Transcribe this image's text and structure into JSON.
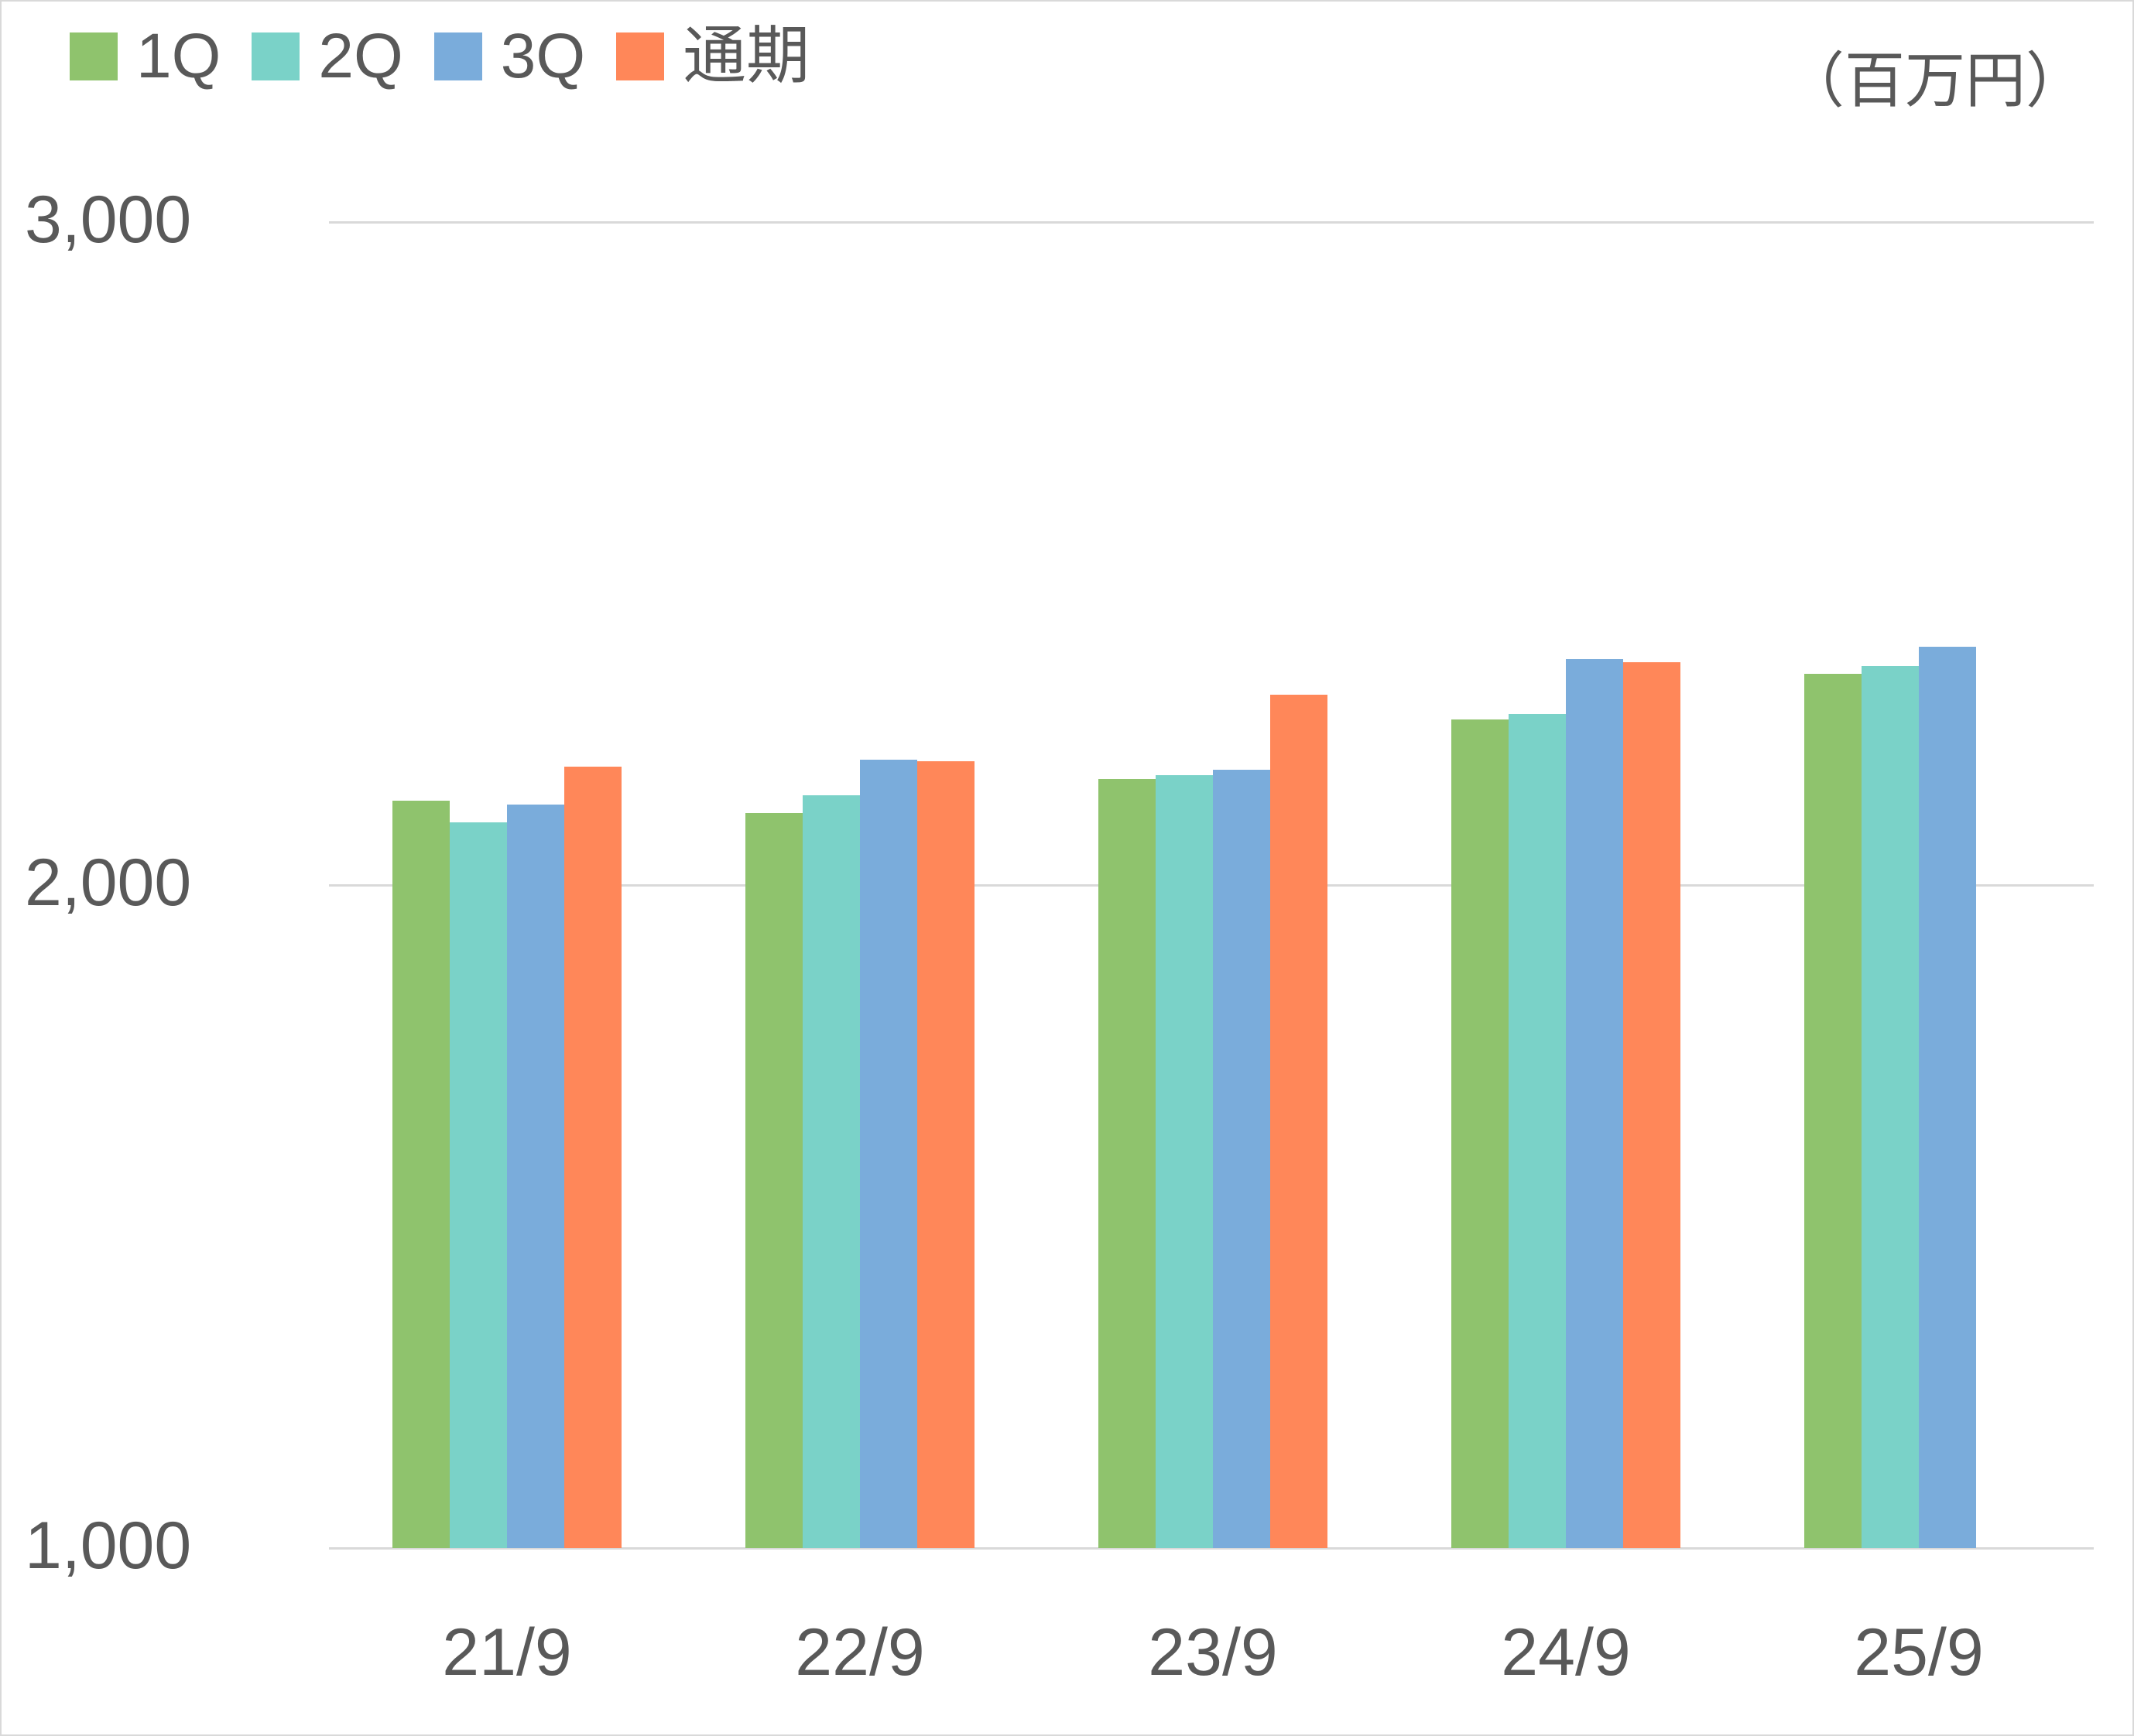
{
  "chart_data": {
    "type": "bar",
    "title": "",
    "unit_label": "（百万円）",
    "xlabel": "",
    "ylabel": "",
    "ylim": [
      1000,
      3000
    ],
    "yticks": [
      "1,000",
      "2,000",
      "3,000"
    ],
    "grid": true,
    "legend_position": "top-left",
    "categories": [
      "21/9",
      "22/9",
      "23/9",
      "24/9",
      "25/9"
    ],
    "series": [
      {
        "name": "1Q",
        "color": "#8FC36D",
        "values": [
          2127,
          2109,
          2160,
          2250,
          2318
        ]
      },
      {
        "name": "2Q",
        "color": "#7AD2C8",
        "values": [
          2094,
          2135,
          2166,
          2258,
          2330
        ]
      },
      {
        "name": "3Q",
        "color": "#7AACDB",
        "values": [
          2121,
          2189,
          2174,
          2341,
          2359
        ]
      },
      {
        "name": "通期",
        "color": "#FF8759",
        "values": [
          2178,
          2187,
          2287,
          2336,
          null
        ]
      }
    ]
  }
}
